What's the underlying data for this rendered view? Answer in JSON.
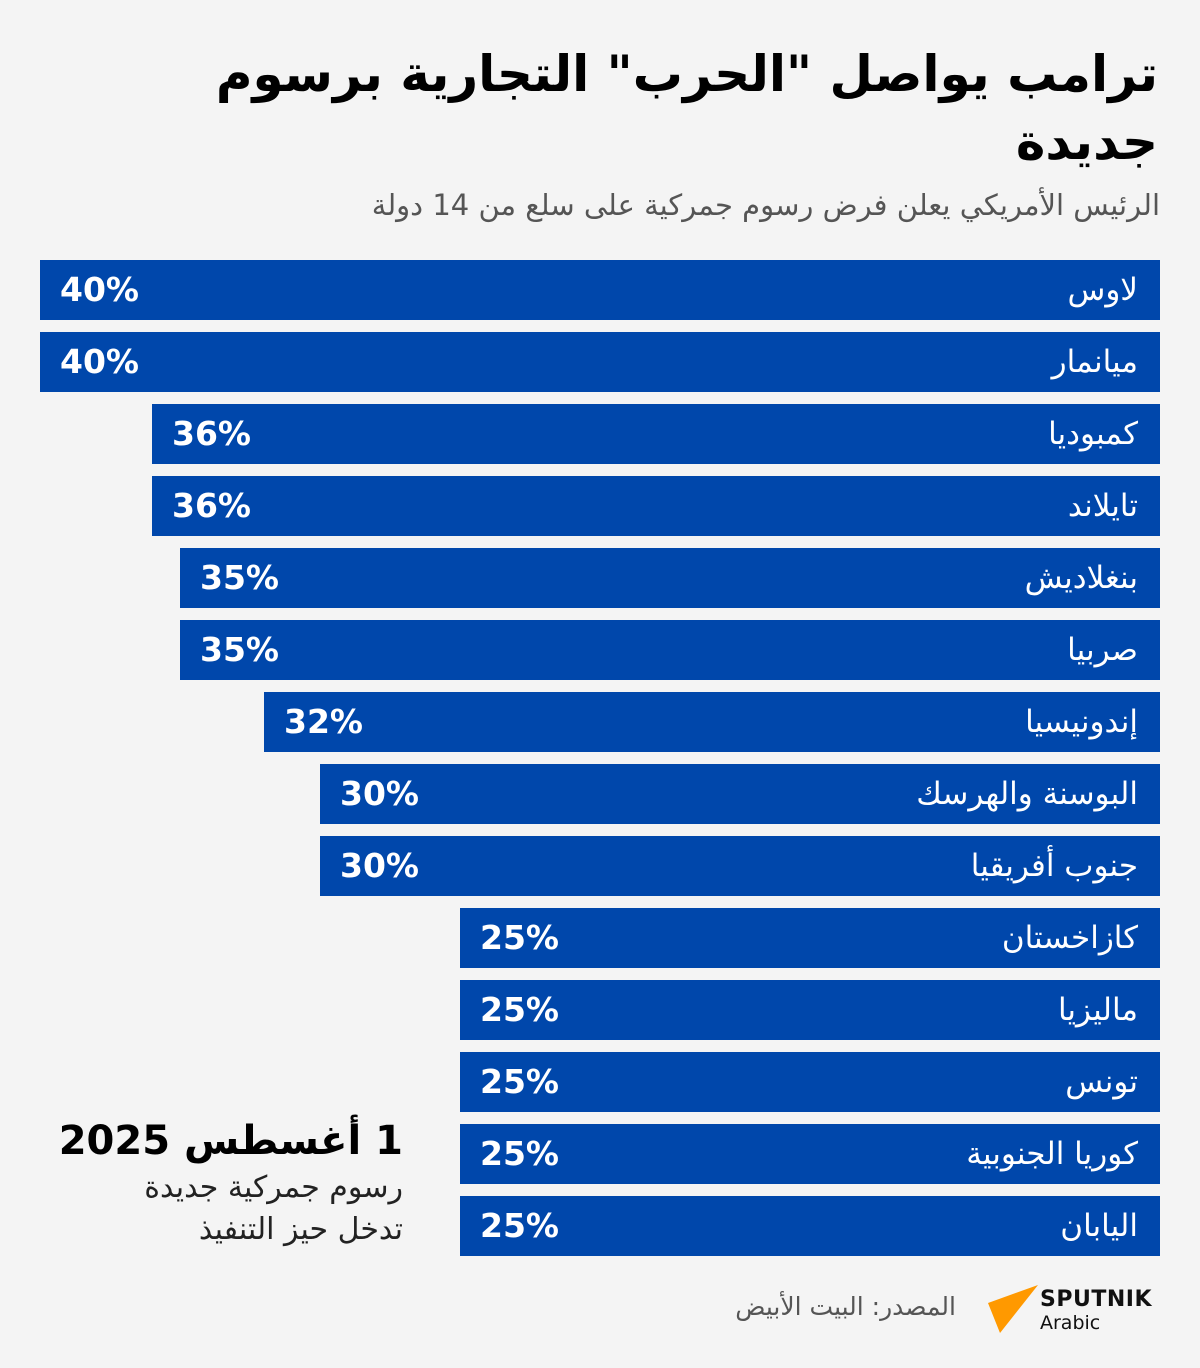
{
  "title": "ترامب يواصل \"الحرب\" التجارية برسوم جديدة",
  "subtitle": "الرئيس الأمريكي يعلن فرض رسوم جمركية على سلع من 14 دولة",
  "chart_data": {
    "type": "bar",
    "orientation": "horizontal",
    "bar_color": "#0047ab",
    "unit": "%",
    "categories": [
      "لاوس",
      "ميانمار",
      "كمبوديا",
      "تايلاند",
      "بنغلاديش",
      "صربيا",
      "إندونيسيا",
      "البوسنة والهرسك",
      "جنوب أفريقيا",
      "كازاخستان",
      "ماليزيا",
      "تونس",
      "كوريا الجنوبية",
      "اليابان"
    ],
    "values": [
      40,
      40,
      36,
      36,
      35,
      35,
      32,
      30,
      30,
      25,
      25,
      25,
      25,
      25
    ],
    "value_labels": [
      "40%",
      "40%",
      "36%",
      "36%",
      "35%",
      "35%",
      "32%",
      "30%",
      "30%",
      "25%",
      "25%",
      "25%",
      "25%",
      "25%"
    ]
  },
  "note": {
    "date": "1 أغسطس 2025",
    "line1": "رسوم جمركية جديدة",
    "line2": "تدخل حيز التنفيذ"
  },
  "source": "المصدر: البيت الأبيض",
  "logo": {
    "name": "SPUTNIK",
    "sub": "Arabic",
    "color": "#ff9900"
  }
}
